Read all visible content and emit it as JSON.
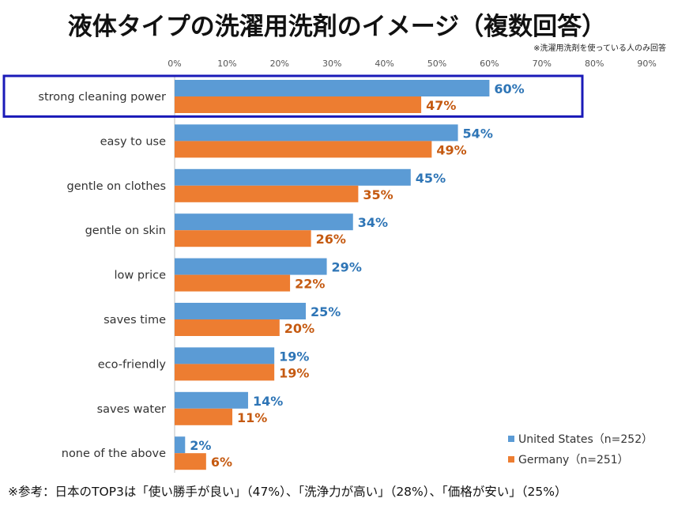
{
  "title": "液体タイプの洗濯用洗剤のイメージ（複数回答）",
  "note": "※洗濯用洗剤を使っている人のみ回答",
  "footnote": "※参考：日本のTOP3は「使い勝手が良い」（47%）、「洗浄力が高い」（28%）、「価格が安い」（25%）",
  "colors": {
    "us": "#5b9bd5",
    "de": "#ed7d31",
    "highlight": "#1a1ab8",
    "us_label": "#2e75b6",
    "de_label": "#c55a11"
  },
  "chart_data": {
    "type": "bar",
    "orientation": "horizontal",
    "title": "液体タイプの洗濯用洗剤のイメージ（複数回答）",
    "xlim": [
      0,
      90
    ],
    "x_ticks": [
      "0%",
      "10%",
      "20%",
      "30%",
      "40%",
      "50%",
      "60%",
      "70%",
      "80%",
      "90%"
    ],
    "x_tick_values": [
      0,
      10,
      20,
      30,
      40,
      50,
      60,
      70,
      80,
      90
    ],
    "categories": [
      "strong cleaning power",
      "easy to use",
      "gentle on clothes",
      "gentle on skin",
      "low price",
      "saves time",
      "eco-friendly",
      "saves water",
      "none of the above"
    ],
    "highlighted_category": "strong cleaning power",
    "legend_position": "bottom-right",
    "series": [
      {
        "name": "United States（n=252）",
        "values": [
          60,
          54,
          45,
          34,
          29,
          25,
          19,
          14,
          2
        ],
        "labels": [
          "60%",
          "54%",
          "45%",
          "34%",
          "29%",
          "25%",
          "19%",
          "14%",
          "2%"
        ]
      },
      {
        "name": "Germany（n=251）",
        "values": [
          47,
          49,
          35,
          26,
          22,
          20,
          19,
          11,
          6
        ],
        "labels": [
          "47%",
          "49%",
          "35%",
          "26%",
          "22%",
          "20%",
          "19%",
          "11%",
          "6%"
        ]
      }
    ]
  }
}
